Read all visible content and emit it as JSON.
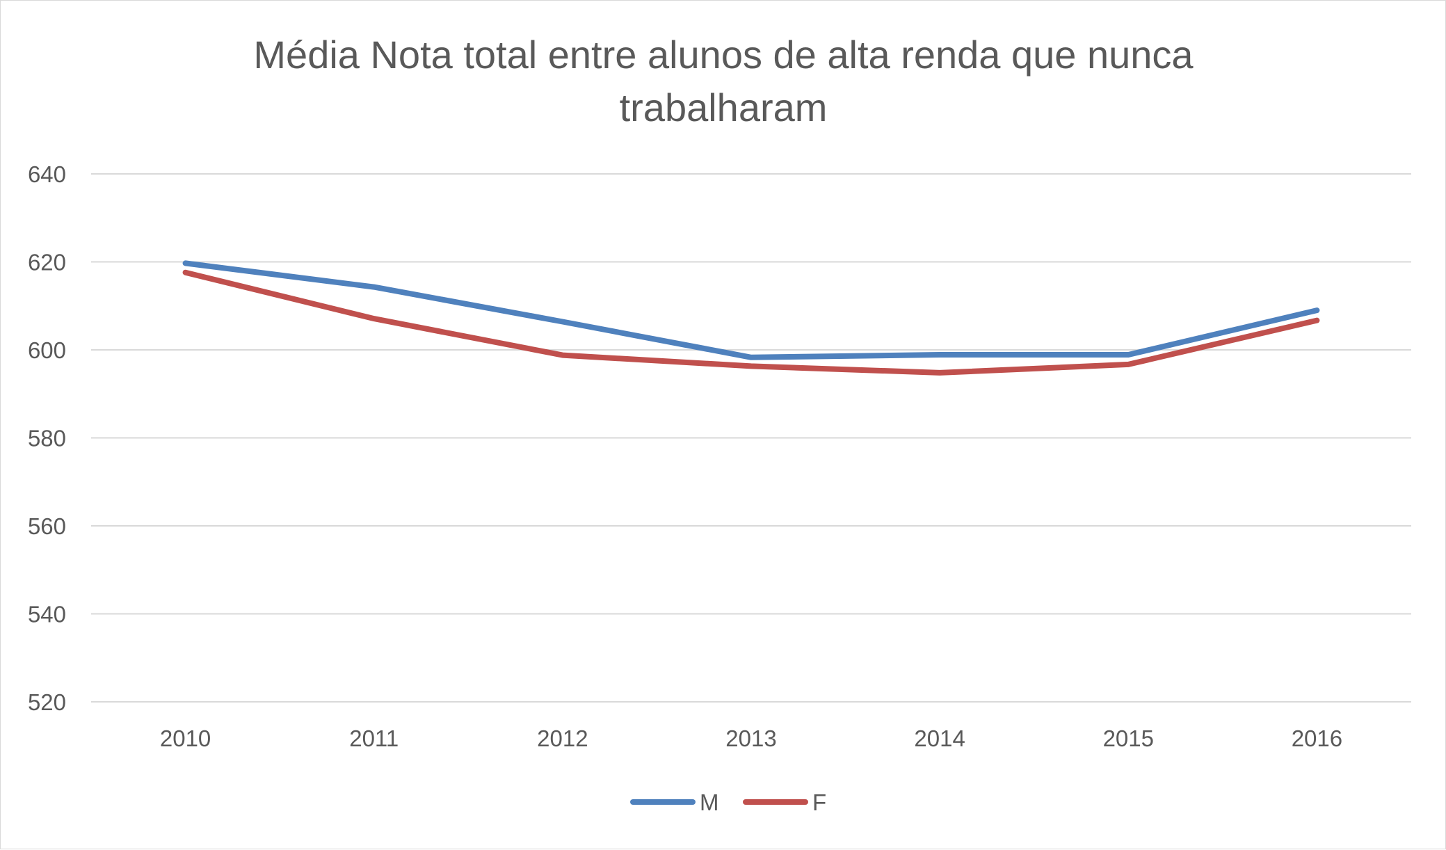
{
  "chart_data": {
    "type": "line",
    "title_lines": [
      "Média Nota total entre alunos de alta renda que nunca",
      "trabalharam"
    ],
    "xlabel": "",
    "ylabel": "",
    "categories": [
      "2010",
      "2011",
      "2012",
      "2013",
      "2014",
      "2015",
      "2016"
    ],
    "series": [
      {
        "name": "M",
        "color": "#4f81bd",
        "values": [
          619.7,
          614.3,
          606.4,
          598.3,
          598.9,
          598.9,
          609.0
        ]
      },
      {
        "name": "F",
        "color": "#c0504d",
        "values": [
          617.6,
          607.1,
          598.8,
          596.3,
          594.8,
          596.7,
          606.7
        ]
      }
    ],
    "ylim": [
      520,
      640
    ],
    "yticks": [
      "520",
      "540",
      "560",
      "580",
      "600",
      "620",
      "640"
    ],
    "grid": true,
    "legend_position": "bottom"
  }
}
